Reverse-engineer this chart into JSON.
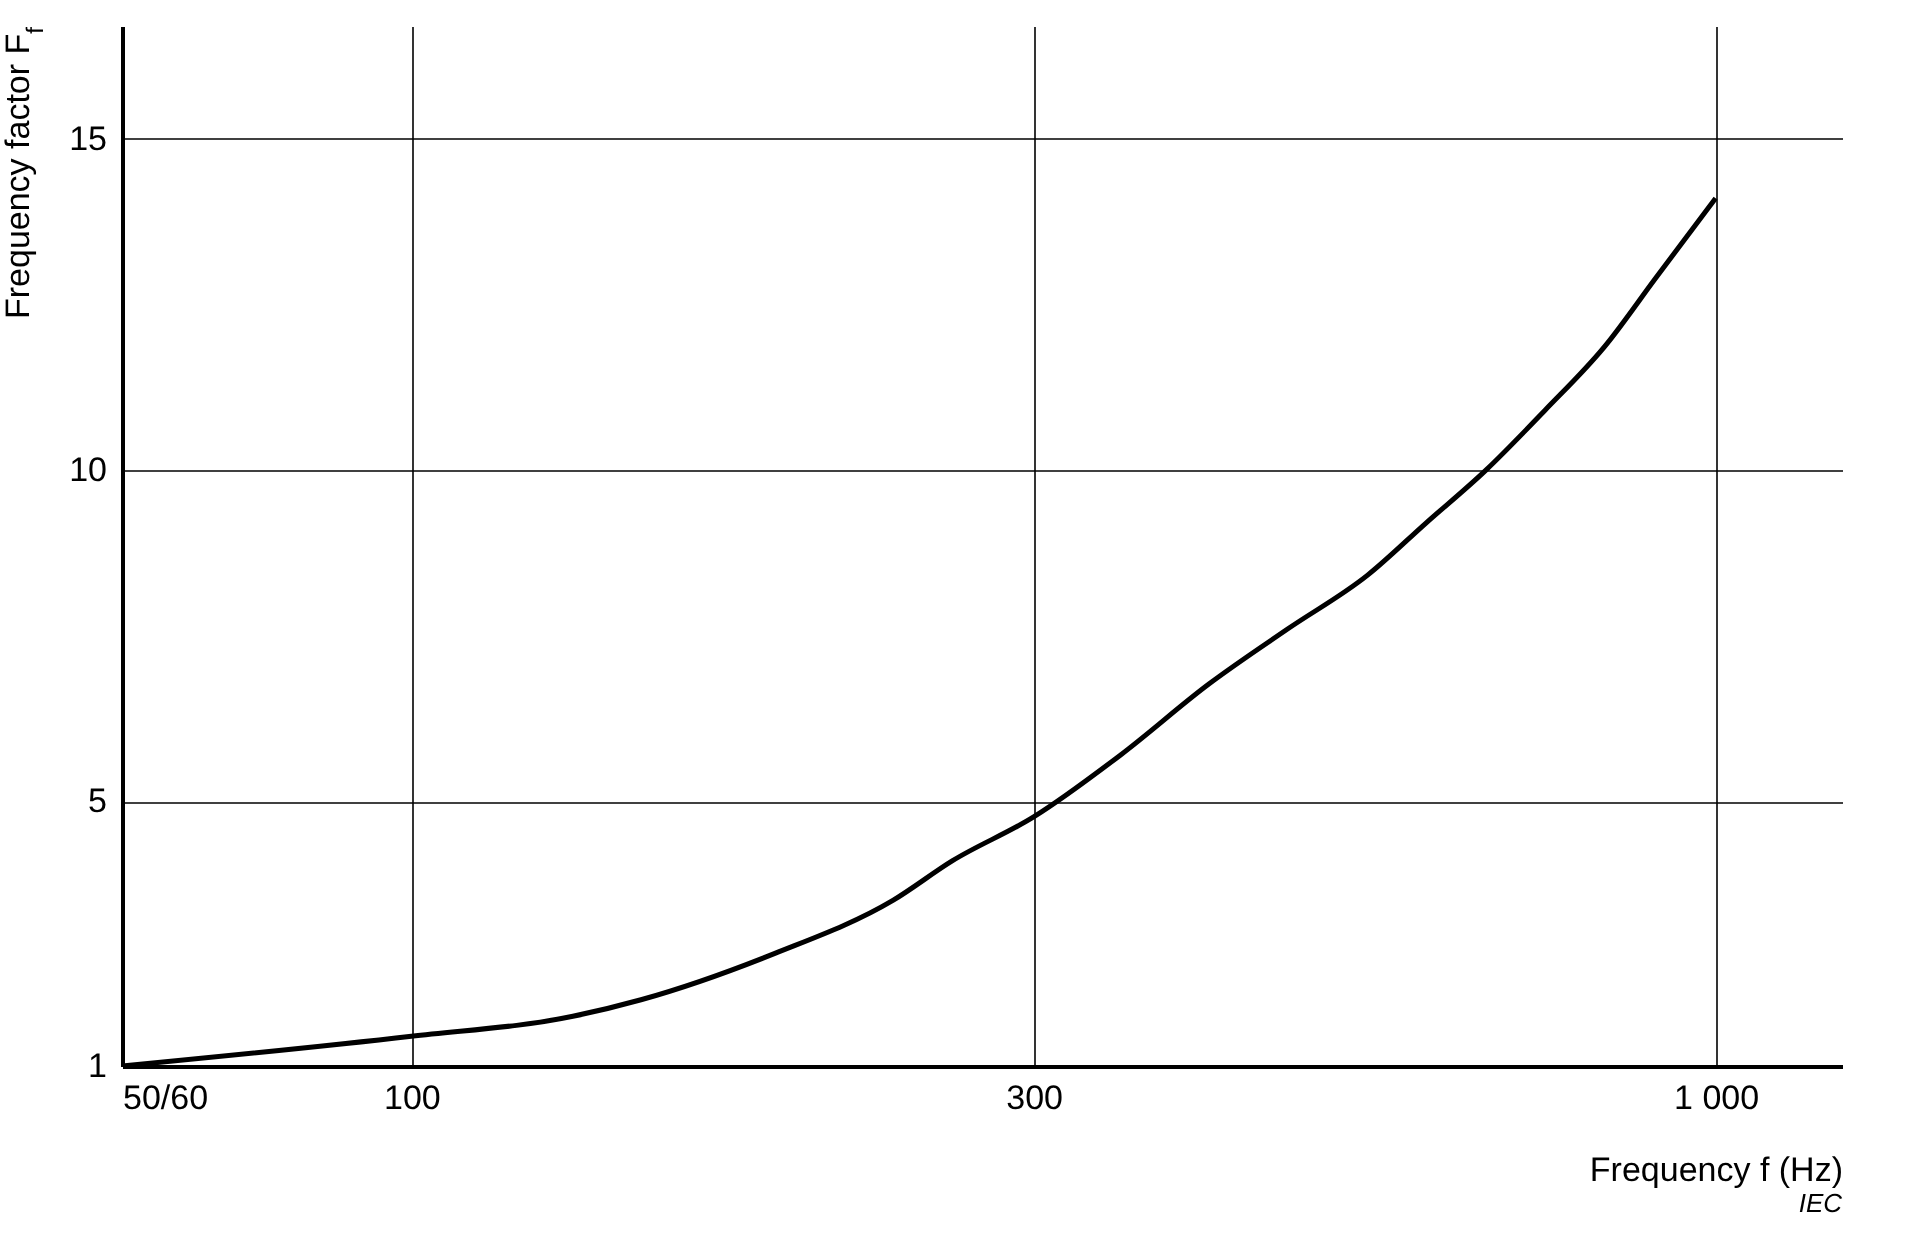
{
  "chart_data": {
    "type": "line",
    "xlabel": "Frequency  f (Hz)",
    "ylabel": "Frequency factor  F$_{f}$",
    "log": "x",
    "x": [
      60,
      100,
      133,
      150,
      190,
      234,
      260,
      300,
      350,
      409,
      470,
      541,
      600,
      667,
      740,
      822,
      900,
      1000
    ],
    "series": [
      {
        "color": "#000000",
        "values": [
          1,
          1.45,
          1.75,
          2.0,
          2.7,
          3.5,
          4.1,
          4.76,
          5.7,
          6.77,
          7.6,
          8.41,
          9.2,
          10,
          10.9,
          11.86,
          12.9,
          14.1
        ]
      }
    ],
    "xlim": [
      60,
      1250
    ],
    "ylim": [
      1,
      16.7
    ],
    "xticks": [
      {
        "value": 60,
        "label": "50/60"
      },
      100,
      300,
      {
        "value": 1000,
        "label": "1 000"
      }
    ],
    "yticks": [
      1,
      5,
      10,
      15
    ],
    "grid": true,
    "marker": "none",
    "line_style": "solid",
    "annotations": [
      "IEC"
    ]
  }
}
